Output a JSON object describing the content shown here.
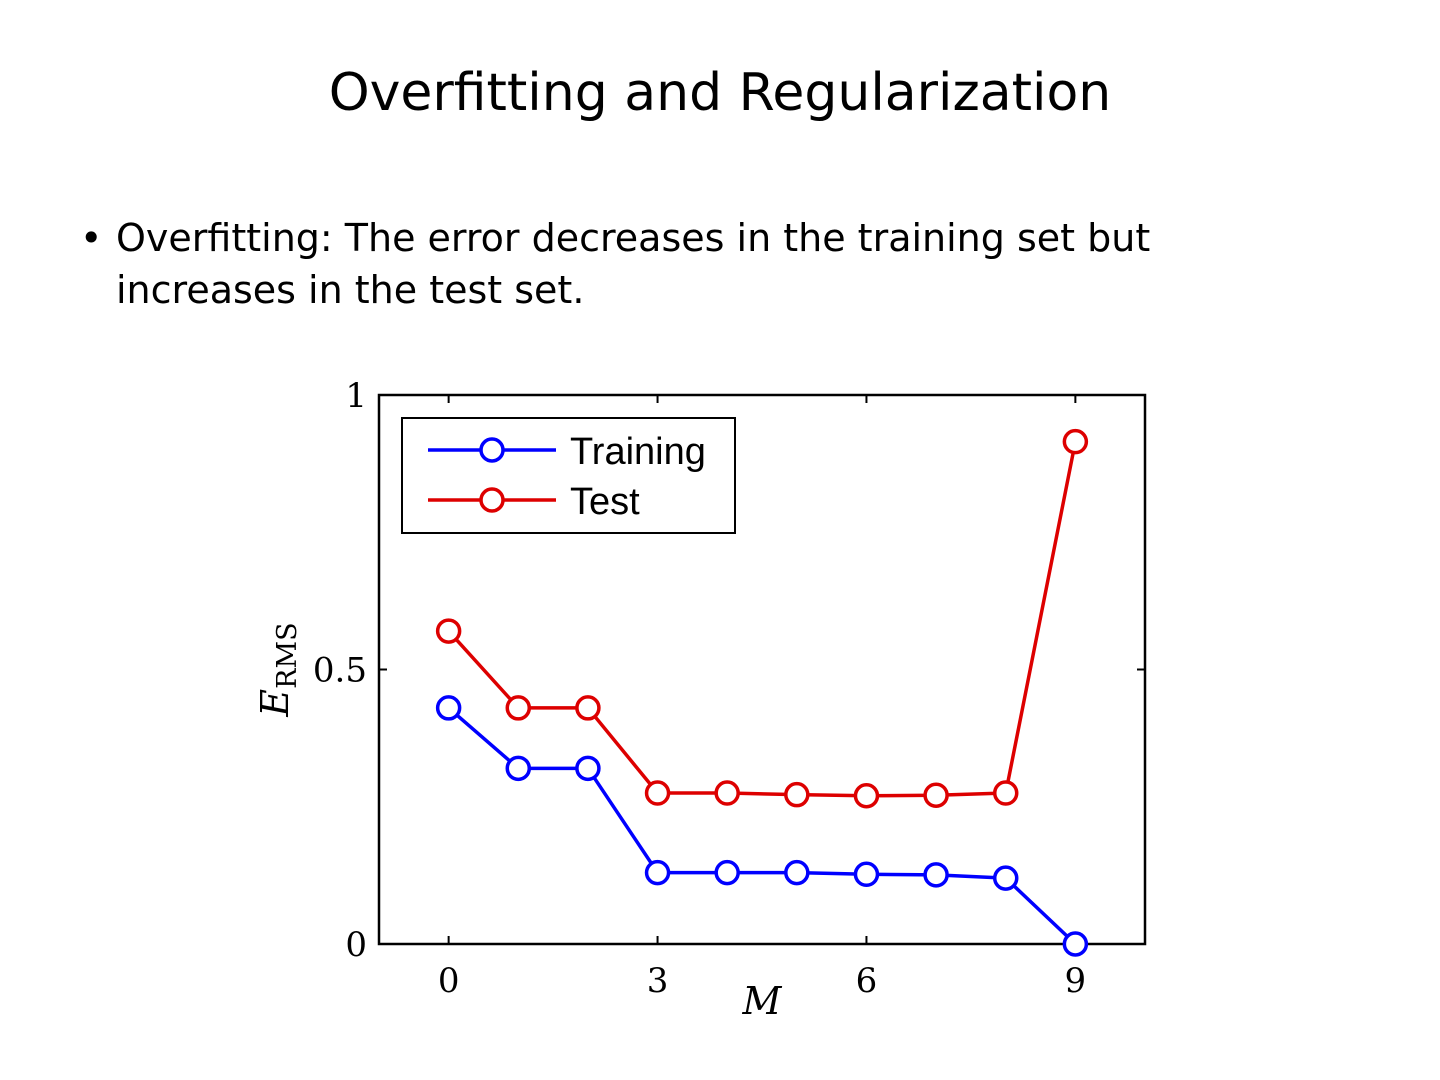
{
  "slide": {
    "title": "Overfitting and Regularization",
    "bullets": [
      {
        "marker": "•",
        "text": "Overfitting: The error decreases in the training set but increases in the test set."
      }
    ]
  },
  "chart_data": {
    "type": "line",
    "x": [
      0,
      1,
      2,
      3,
      4,
      5,
      6,
      7,
      8,
      9
    ],
    "series": [
      {
        "name": "Training",
        "color": "#0000ff",
        "marker": "circle",
        "values": [
          0.43,
          0.32,
          0.32,
          0.13,
          0.13,
          0.13,
          0.127,
          0.126,
          0.12,
          0.0
        ]
      },
      {
        "name": "Test",
        "color": "#dd0000",
        "marker": "circle",
        "values": [
          0.57,
          0.43,
          0.43,
          0.275,
          0.275,
          0.272,
          0.27,
          0.271,
          0.275,
          0.915
        ]
      }
    ],
    "xlabel": "M",
    "ylabel_main": "E",
    "ylabel_sub": "RMS",
    "xlim": [
      -1,
      10
    ],
    "ylim": [
      0,
      1
    ],
    "xticks": [
      0,
      3,
      6,
      9
    ],
    "yticks": [
      0,
      0.5,
      1
    ],
    "ytick_labels": [
      "0",
      "0.5",
      "1"
    ],
    "legend_position": "top-left",
    "grid": false
  }
}
